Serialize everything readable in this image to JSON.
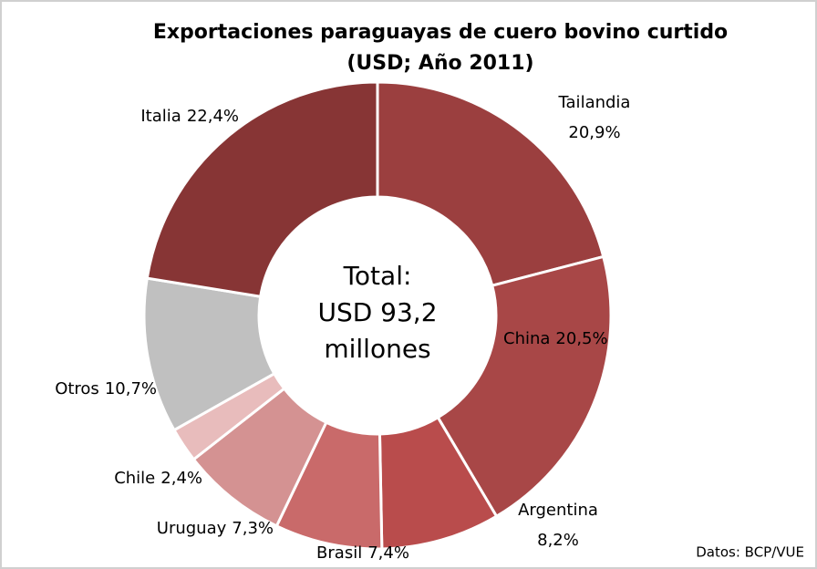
{
  "chart_data": {
    "type": "donut",
    "title": "Exportaciones paraguayas de cuero bovino curtido",
    "subtitle": "(USD; Año 2011)",
    "categories": [
      "Tailandia",
      "China",
      "Argentina",
      "Brasil",
      "Uruguay",
      "Chile",
      "Otros",
      "Italia"
    ],
    "values": [
      20.9,
      20.5,
      8.2,
      7.4,
      7.3,
      2.4,
      10.7,
      22.4
    ],
    "value_labels": [
      "20,9%",
      "20,5%",
      "8,2%",
      "7,4%",
      "7,3%",
      "2,4%",
      "10,7%",
      "22,4%"
    ],
    "colors": [
      "#9b3f3f",
      "#a84747",
      "#b94c4c",
      "#c96a6a",
      "#d49292",
      "#e8bcbc",
      "#c0c0c0",
      "#873535"
    ],
    "center_text": [
      "Total:",
      "USD 93,2",
      "millones"
    ],
    "source": "Datos: BCP/VUE"
  }
}
